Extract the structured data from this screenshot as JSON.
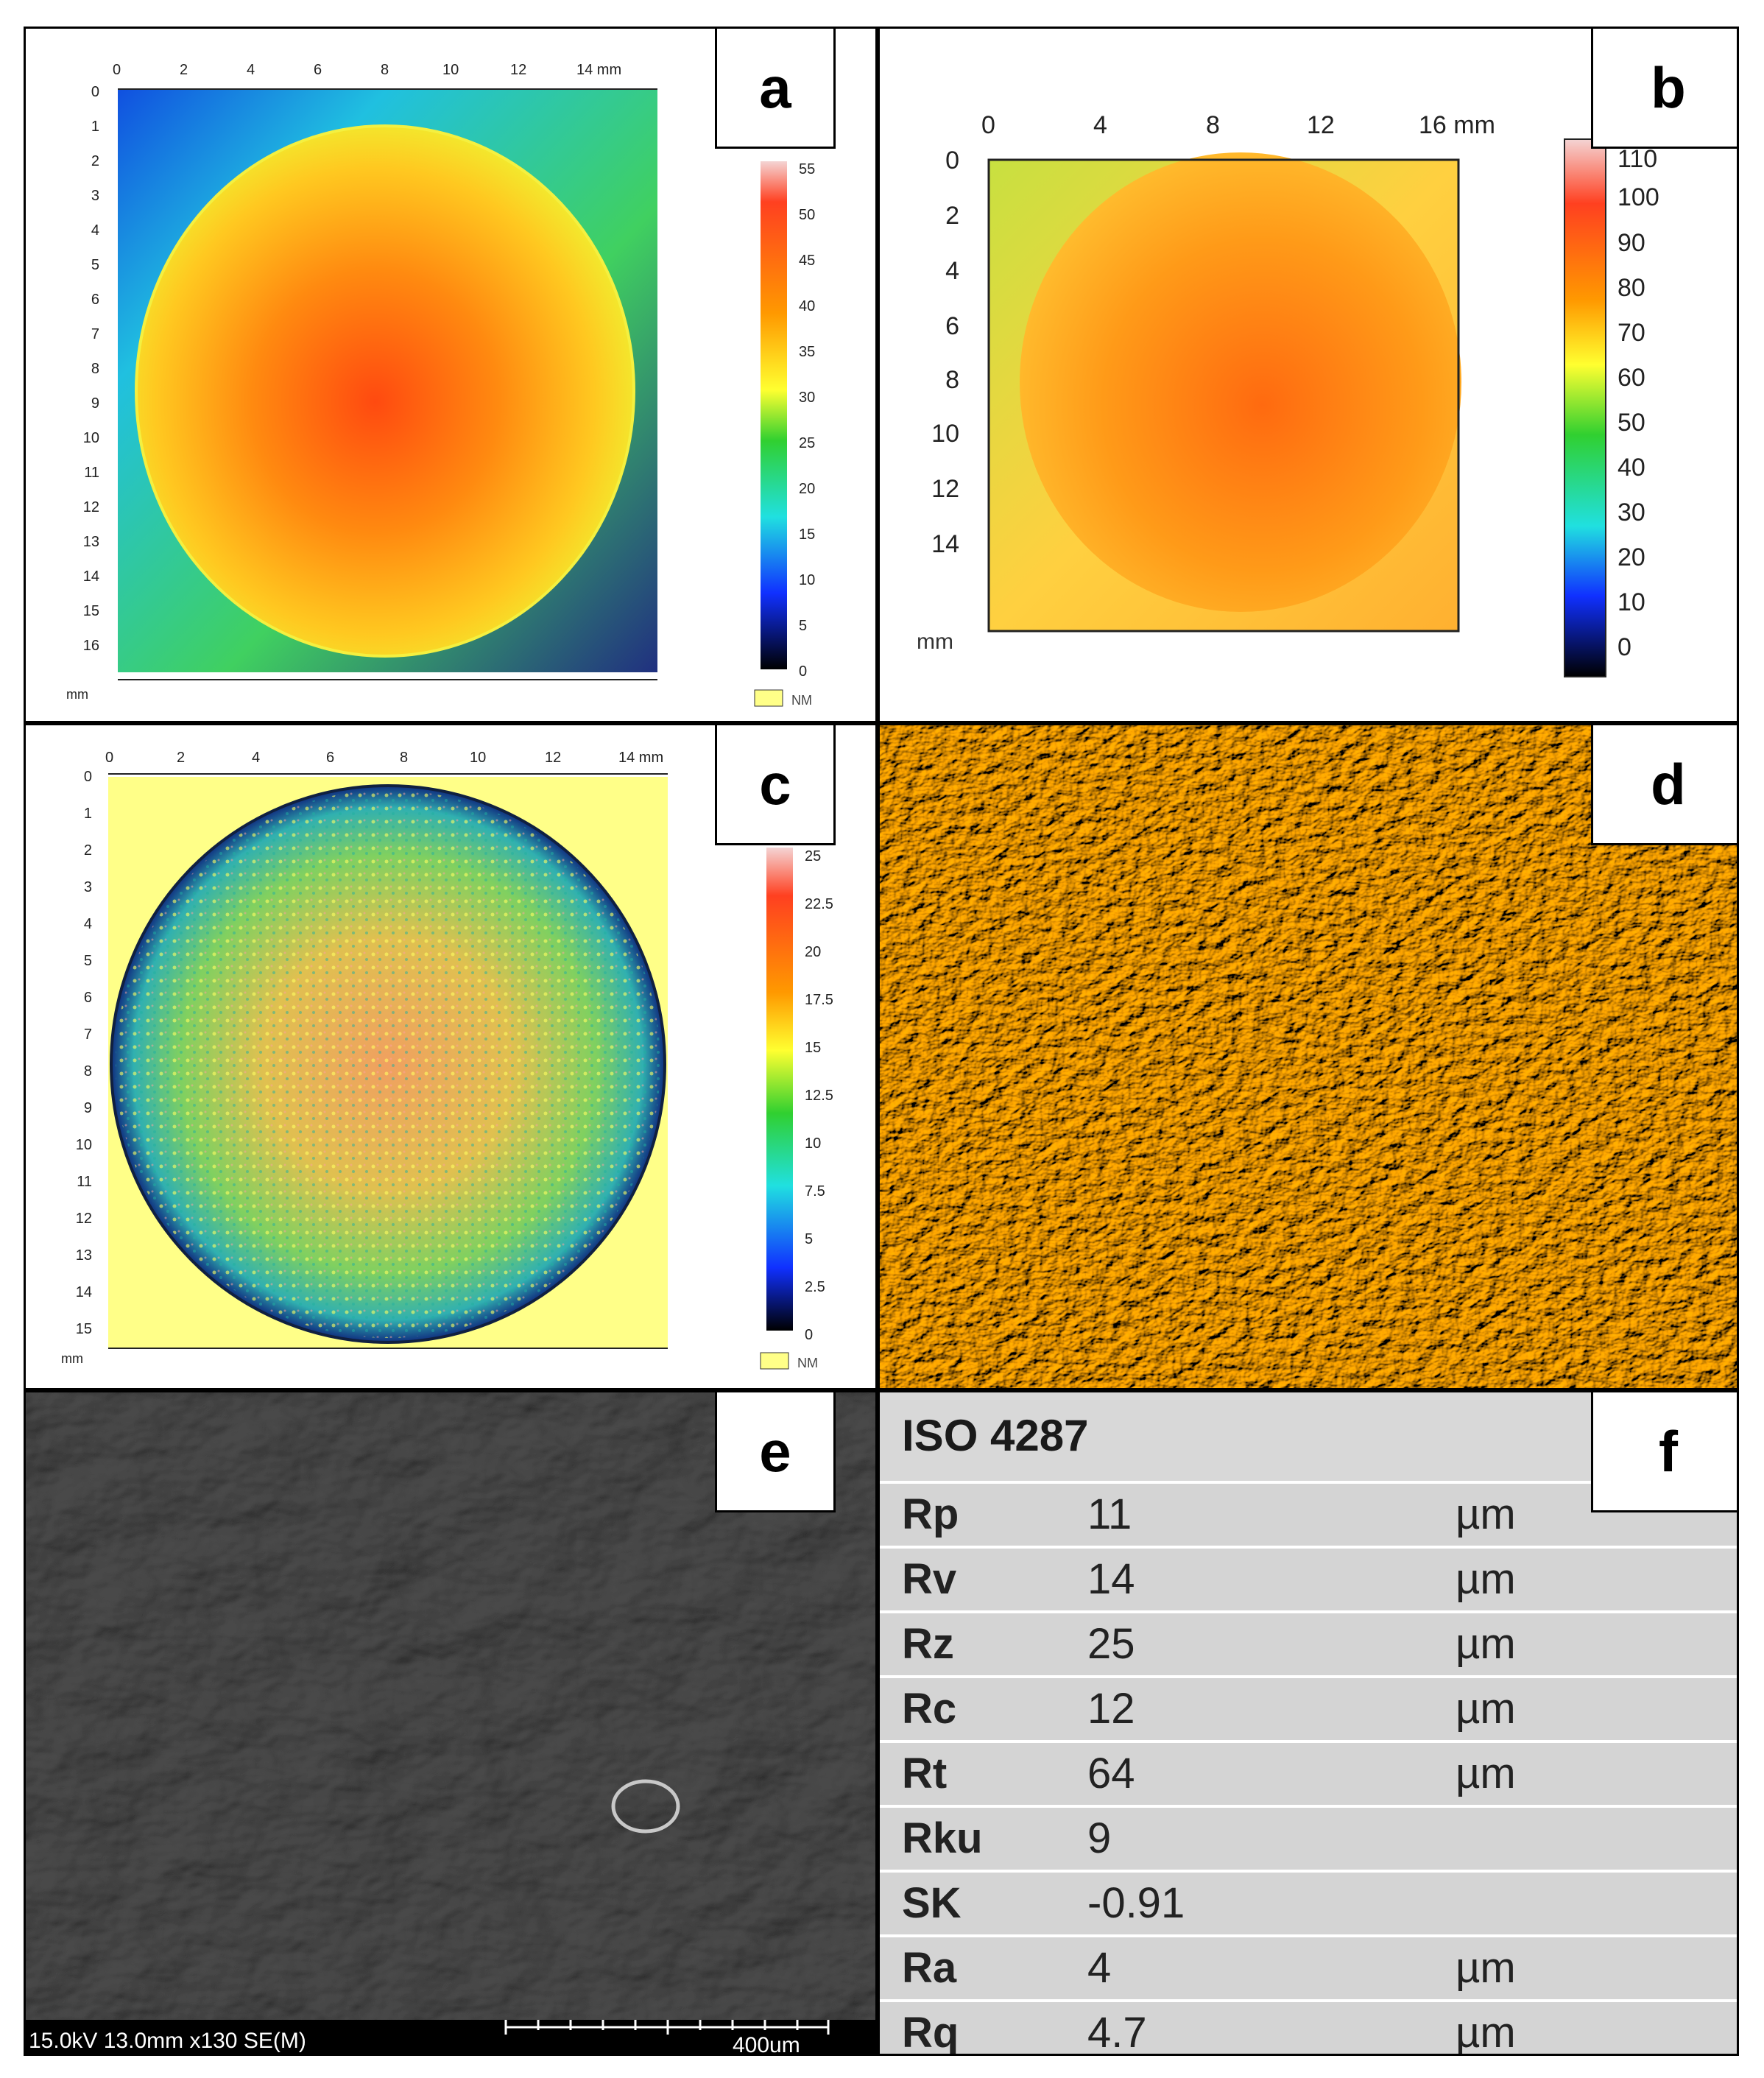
{
  "panels": {
    "a": {
      "letter": "a",
      "x_ticks": [
        "0",
        "2",
        "4",
        "6",
        "8",
        "10",
        "12",
        "14 mm"
      ],
      "y_ticks": [
        "0",
        "1",
        "2",
        "3",
        "4",
        "5",
        "6",
        "7",
        "8",
        "9",
        "10",
        "11",
        "12",
        "13",
        "14",
        "15",
        "16"
      ],
      "unit": "mm",
      "scale_ticks": [
        "55",
        "50",
        "45",
        "40",
        "35",
        "30",
        "25",
        "20",
        "15",
        "10",
        "5",
        "0"
      ],
      "nm_label": "NM"
    },
    "b": {
      "letter": "b",
      "x_ticks": [
        "0",
        "4",
        "8",
        "12",
        "16 mm"
      ],
      "y_ticks": [
        "0",
        "2",
        "4",
        "6",
        "8",
        "10",
        "12",
        "14"
      ],
      "unit": "mm",
      "scale_ticks": [
        "110",
        "100",
        "90",
        "80",
        "70",
        "60",
        "50",
        "40",
        "30",
        "20",
        "10",
        "0"
      ]
    },
    "c": {
      "letter": "c",
      "x_ticks": [
        "0",
        "2",
        "4",
        "6",
        "8",
        "10",
        "12",
        "14 mm"
      ],
      "y_ticks": [
        "0",
        "1",
        "2",
        "3",
        "4",
        "5",
        "6",
        "7",
        "8",
        "9",
        "10",
        "11",
        "12",
        "13",
        "14",
        "15"
      ],
      "unit": "mm",
      "scale_ticks": [
        "25",
        "22.5",
        "20",
        "17.5",
        "15",
        "12.5",
        "10",
        "7.5",
        "5",
        "2.5",
        "0"
      ],
      "nm_label": "NM"
    },
    "d": {
      "letter": "d"
    },
    "e": {
      "letter": "e",
      "sem_info": "15.0kV 13.0mm x130 SE(M)",
      "scale_label": "400um"
    },
    "f": {
      "letter": "f",
      "standard": "ISO 4287",
      "rows": [
        {
          "param": "Rp",
          "value": "11",
          "unit": "µm"
        },
        {
          "param": "Rv",
          "value": "14",
          "unit": "µm"
        },
        {
          "param": "Rz",
          "value": "25",
          "unit": "µm"
        },
        {
          "param": "Rc",
          "value": "12",
          "unit": "µm"
        },
        {
          "param": "Rt",
          "value": "64",
          "unit": "µm"
        },
        {
          "param": "Rku",
          "value": "9",
          "unit": ""
        },
        {
          "param": "SK",
          "value": "-0.91",
          "unit": ""
        },
        {
          "param": "Ra",
          "value": "4",
          "unit": "µm"
        },
        {
          "param": "Rq",
          "value": "4.7",
          "unit": "µm"
        }
      ]
    }
  },
  "colors": {
    "jet_top": "#f4d4d4",
    "jet_red": "#ff4020",
    "jet_orange": "#ff9900",
    "jet_yellow": "#ffff30",
    "jet_green": "#30d030",
    "jet_cyan": "#20e0e0",
    "jet_blue": "#1030ff",
    "jet_bottom": "#000000",
    "nm_swatch": "#ffff88",
    "table_bg": "#d4d4d4"
  }
}
